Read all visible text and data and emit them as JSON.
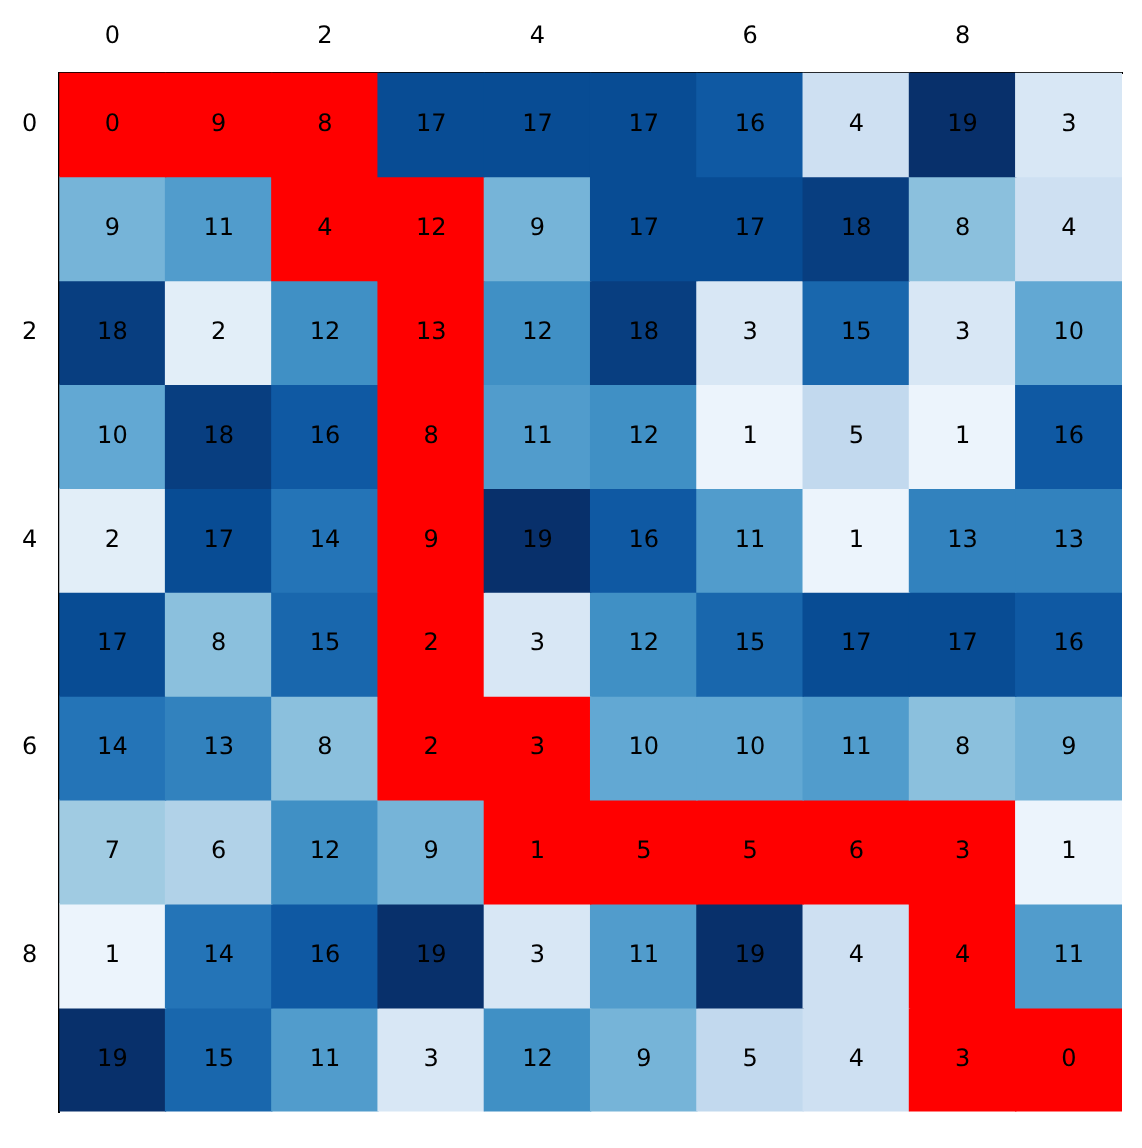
{
  "chart_data": {
    "type": "heatmap",
    "categories": [
      "0",
      null,
      "2",
      null,
      "4",
      null,
      "6",
      null,
      "8",
      null
    ],
    "y_categories": [
      "0",
      null,
      "2",
      null,
      "4",
      null,
      "6",
      null,
      "8",
      null
    ],
    "cells": [
      [
        0,
        9,
        8,
        17,
        17,
        17,
        16,
        4,
        19,
        3
      ],
      [
        9,
        11,
        4,
        12,
        9,
        17,
        17,
        18,
        8,
        4
      ],
      [
        18,
        2,
        12,
        13,
        12,
        18,
        3,
        15,
        3,
        10
      ],
      [
        10,
        18,
        16,
        8,
        11,
        12,
        1,
        5,
        1,
        16
      ],
      [
        2,
        17,
        14,
        9,
        19,
        16,
        11,
        1,
        13,
        13
      ],
      [
        17,
        8,
        15,
        2,
        3,
        12,
        15,
        17,
        17,
        16
      ],
      [
        14,
        13,
        8,
        2,
        3,
        10,
        10,
        11,
        8,
        9
      ],
      [
        7,
        6,
        12,
        9,
        1,
        5,
        5,
        6,
        3,
        1
      ],
      [
        1,
        14,
        16,
        19,
        3,
        11,
        19,
        4,
        4,
        11
      ],
      [
        19,
        15,
        11,
        3,
        12,
        9,
        5,
        4,
        3,
        0
      ]
    ],
    "colors": [
      [
        "#ff0000",
        "#ff0000",
        "#ff0000",
        null,
        null,
        null,
        null,
        null,
        null,
        null
      ],
      [
        null,
        null,
        "#ff0000",
        "#ff0000",
        null,
        null,
        null,
        null,
        null,
        null
      ],
      [
        null,
        null,
        null,
        "#ff0000",
        null,
        null,
        null,
        null,
        null,
        null
      ],
      [
        null,
        null,
        null,
        "#ff0000",
        null,
        null,
        null,
        null,
        null,
        null
      ],
      [
        null,
        null,
        null,
        "#ff0000",
        null,
        null,
        null,
        null,
        null,
        null
      ],
      [
        null,
        null,
        null,
        "#ff0000",
        null,
        null,
        null,
        null,
        null,
        null
      ],
      [
        null,
        null,
        null,
        "#ff0000",
        "#ff0000",
        null,
        null,
        null,
        null,
        null
      ],
      [
        null,
        null,
        null,
        null,
        "#ff0000",
        "#ff0000",
        "#ff0000",
        "#ff0000",
        "#ff0000",
        null
      ],
      [
        null,
        null,
        null,
        null,
        null,
        null,
        null,
        null,
        "#ff0000",
        null
      ],
      [
        null,
        null,
        null,
        null,
        null,
        null,
        null,
        null,
        "#ff0000",
        "#ff0000"
      ]
    ],
    "data_labels": true
  }
}
